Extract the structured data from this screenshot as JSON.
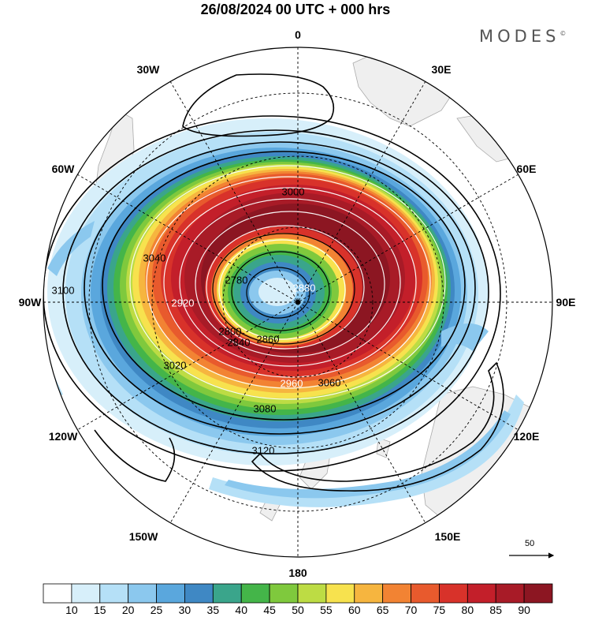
{
  "header": {
    "title": "26/08/2024  00 UTC  + 000 hrs",
    "brand": "MODES",
    "brand_mark": "©"
  },
  "map": {
    "projection": "polar-stereographic",
    "center": "south-pole",
    "longitude_labels": [
      "0",
      "30E",
      "60E",
      "90E",
      "120E",
      "150E",
      "180",
      "150W",
      "120W",
      "90W",
      "60W",
      "30W"
    ],
    "field": "wind speed (shaded) + geopotential height contours + wind vectors",
    "contour_labels": [
      "2780",
      "2800",
      "2840",
      "2860",
      "2880",
      "2920",
      "2960",
      "3000",
      "3020",
      "3040",
      "3060",
      "3080",
      "3100",
      "3120"
    ],
    "vector_reference": "50"
  },
  "colorbar": {
    "labels": [
      "10",
      "15",
      "20",
      "25",
      "30",
      "35",
      "40",
      "45",
      "50",
      "55",
      "60",
      "65",
      "70",
      "75",
      "80",
      "85",
      "90"
    ],
    "colors": [
      "#ffffff",
      "#d7effa",
      "#b5e0f7",
      "#8bc8ee",
      "#5aa7dd",
      "#3f88c4",
      "#3aa58b",
      "#44b549",
      "#7fc93d",
      "#bddc44",
      "#f7e24e",
      "#f6b53f",
      "#f28333",
      "#e85a2d",
      "#d8322a",
      "#c31f2a",
      "#a81b27",
      "#8c1622"
    ]
  }
}
